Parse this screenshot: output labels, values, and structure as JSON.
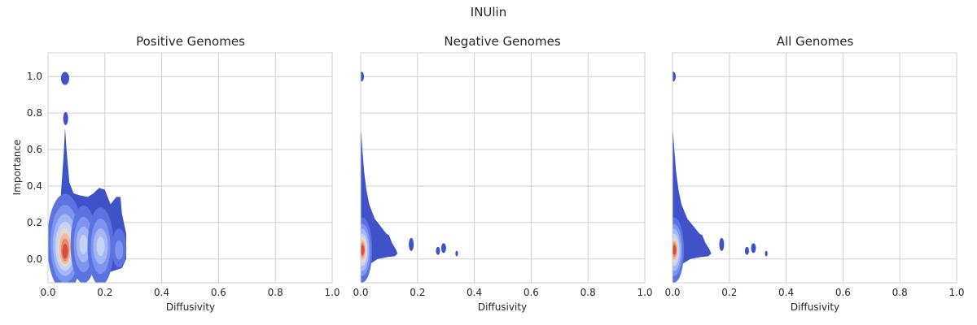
{
  "figure_title": "INUlin",
  "chart_data": [
    {
      "type": "kde-contour",
      "title": "Positive Genomes",
      "xlabel": "Diffusivity",
      "ylabel": "Importance",
      "xlim": [
        0.0,
        1.0
      ],
      "ylim": [
        -0.13,
        1.13
      ],
      "xticks": [
        "0.0",
        "0.2",
        "0.4",
        "0.6",
        "0.8",
        "1.0"
      ],
      "yticks": [
        "0.0",
        "0.2",
        "0.4",
        "0.6",
        "0.8",
        "1.0"
      ],
      "grid": true,
      "density_peaks": [
        {
          "x": 0.06,
          "y": 0.07,
          "level": "max"
        },
        {
          "x": 0.12,
          "y": 0.06,
          "level": "mid"
        },
        {
          "x": 0.19,
          "y": 0.06,
          "level": "mid"
        },
        {
          "x": 0.25,
          "y": 0.05,
          "level": "low"
        },
        {
          "x": 0.06,
          "y": 1.0,
          "level": "low"
        }
      ]
    },
    {
      "type": "kde-contour",
      "title": "Negative Genomes",
      "xlabel": "Diffusivity",
      "ylabel": "",
      "xlim": [
        0.0,
        1.0
      ],
      "ylim": [
        -0.13,
        1.13
      ],
      "xticks": [
        "0.0",
        "0.2",
        "0.4",
        "0.6",
        "0.8",
        "1.0"
      ],
      "yticks": [],
      "grid": true,
      "density_peaks": [
        {
          "x": 0.01,
          "y": 0.05,
          "level": "max"
        },
        {
          "x": 0.0,
          "y": 1.0,
          "level": "low"
        },
        {
          "x": 0.18,
          "y": 0.08,
          "level": "low"
        },
        {
          "x": 0.28,
          "y": 0.05,
          "level": "low"
        },
        {
          "x": 0.34,
          "y": 0.03,
          "level": "low"
        }
      ]
    },
    {
      "type": "kde-contour",
      "title": "All Genomes",
      "xlabel": "Diffusivity",
      "ylabel": "",
      "xlim": [
        0.0,
        1.0
      ],
      "ylim": [
        -0.13,
        1.13
      ],
      "xticks": [
        "0.0",
        "0.2",
        "0.4",
        "0.6",
        "0.8",
        "1.0"
      ],
      "yticks": [],
      "grid": true,
      "density_peaks": [
        {
          "x": 0.01,
          "y": 0.05,
          "level": "max"
        },
        {
          "x": 0.0,
          "y": 1.0,
          "level": "low"
        },
        {
          "x": 0.17,
          "y": 0.08,
          "level": "low"
        },
        {
          "x": 0.27,
          "y": 0.05,
          "level": "low"
        },
        {
          "x": 0.33,
          "y": 0.03,
          "level": "low"
        }
      ]
    }
  ],
  "colors": {
    "outer": "#3f52c8",
    "c2": "#5a73e0",
    "c3": "#7e95f0",
    "c4": "#a4b6f5",
    "c5": "#c8d2f2",
    "c6": "#e2d8d2",
    "c7": "#f0b8a0",
    "c8": "#e88868",
    "core": "#d44e3c"
  }
}
